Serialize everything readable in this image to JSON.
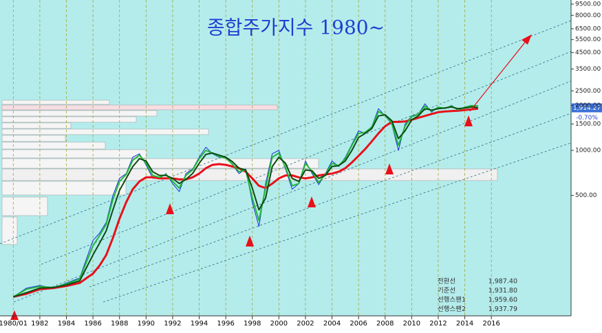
{
  "chart_data": {
    "type": "line",
    "title": "종합주가지수 1980~",
    "log_scale": true,
    "grid": true,
    "xlim": [
      1979,
      2022
    ],
    "ylim": [
      80,
      9500
    ],
    "xticks": [
      {
        "value": 1980,
        "label": "1980/01"
      },
      1982,
      1984,
      1986,
      1988,
      1990,
      1992,
      1994,
      1996,
      1998,
      2000,
      2002,
      2004,
      2006,
      2008,
      2010,
      2012,
      2014,
      2016
    ],
    "yticks": [
      {
        "value": 9500,
        "label": "9500.00"
      },
      {
        "value": 8000,
        "label": "8000.00"
      },
      {
        "value": 6500,
        "label": "6500.00"
      },
      {
        "value": 5500,
        "label": "5500.00"
      },
      {
        "value": 4500,
        "label": "4500.00"
      },
      {
        "value": 3500,
        "label": "3500.00"
      },
      {
        "value": 2500,
        "label": "2500.00"
      },
      {
        "value": 2000,
        "label": "2000.00"
      },
      {
        "value": 1500,
        "label": "1500.00"
      },
      {
        "value": 1000,
        "label": "1000.00"
      },
      {
        "value": 500,
        "label": "500.00"
      }
    ],
    "x": [
      1980,
      1981,
      1982,
      1983,
      1984,
      1985,
      1986,
      1986.5,
      1987,
      1987.5,
      1988,
      1988.5,
      1989,
      1989.5,
      1990,
      1990.5,
      1991,
      1991.5,
      1992,
      1992.5,
      1993,
      1993.5,
      1994,
      1994.5,
      1995,
      1995.5,
      1996,
      1996.5,
      1997,
      1997.5,
      1998,
      1998.5,
      1999,
      1999.5,
      2000,
      2000.5,
      2001,
      2001.5,
      2002,
      2002.5,
      2003,
      2003.5,
      2004,
      2004.5,
      2005,
      2005.5,
      2006,
      2006.5,
      2007,
      2007.5,
      2008,
      2008.5,
      2009,
      2009.5,
      2010,
      2010.5,
      2011,
      2011.5,
      2012,
      2012.5,
      2013,
      2013.5,
      2014,
      2014.5,
      2015
    ],
    "series": [
      {
        "color": "#1a2fd8",
        "values": [
          105,
          120,
          125,
          120,
          130,
          140,
          250,
          280,
          330,
          500,
          650,
          700,
          900,
          950,
          800,
          650,
          650,
          700,
          600,
          530,
          700,
          750,
          900,
          1050,
          950,
          900,
          900,
          800,
          700,
          750,
          450,
          310,
          600,
          950,
          1000,
          750,
          550,
          600,
          850,
          700,
          590,
          700,
          850,
          780,
          900,
          1100,
          1350,
          1300,
          1450,
          1900,
          1700,
          1500,
          1000,
          1500,
          1700,
          1750,
          2050,
          1800,
          1950,
          1900,
          2000,
          1850,
          1950,
          2000,
          1914.27
        ]
      },
      {
        "color": "#e8101a",
        "values": [
          105,
          110,
          118,
          120,
          124,
          130,
          150,
          170,
          200,
          260,
          350,
          450,
          550,
          620,
          660,
          660,
          650,
          650,
          650,
          640,
          640,
          660,
          700,
          760,
          800,
          810,
          800,
          780,
          760,
          720,
          650,
          580,
          560,
          600,
          650,
          680,
          680,
          660,
          650,
          660,
          680,
          690,
          700,
          720,
          760,
          830,
          920,
          1020,
          1150,
          1300,
          1450,
          1550,
          1550,
          1560,
          1600,
          1650,
          1700,
          1750,
          1800,
          1820,
          1830,
          1840,
          1860,
          1880,
          1900
        ]
      },
      {
        "name": "전환선",
        "color": "#22b83a",
        "values": [
          105,
          118,
          123,
          121,
          128,
          138,
          230,
          270,
          320,
          470,
          620,
          690,
          860,
          930,
          820,
          680,
          660,
          690,
          620,
          560,
          680,
          740,
          880,
          1000,
          960,
          910,
          890,
          810,
          720,
          740,
          480,
          340,
          560,
          900,
          960,
          770,
          580,
          600,
          820,
          720,
          610,
          690,
          820,
          790,
          880,
          1080,
          1300,
          1320,
          1430,
          1820,
          1720,
          1520,
          1080,
          1450,
          1680,
          1740,
          1980,
          1830,
          1940,
          1910,
          1980,
          1870,
          1940,
          1990,
          1985
        ]
      },
      {
        "name": "기준선",
        "color": "#0c4a12",
        "values": [
          105,
          112,
          120,
          121,
          126,
          134,
          200,
          240,
          290,
          400,
          540,
          650,
          780,
          880,
          850,
          720,
          680,
          680,
          650,
          600,
          640,
          700,
          820,
          940,
          960,
          930,
          900,
          840,
          760,
          740,
          560,
          400,
          480,
          780,
          900,
          820,
          650,
          620,
          740,
          730,
          650,
          680,
          780,
          790,
          850,
          1000,
          1220,
          1300,
          1400,
          1700,
          1730,
          1580,
          1200,
          1350,
          1600,
          1700,
          1900,
          1860,
          1900,
          1920,
          1950,
          1900,
          1920,
          1950,
          1930
        ]
      }
    ],
    "current_price": {
      "value": 1914.27,
      "label": "1,914.27"
    },
    "change": {
      "value": -0.7,
      "label": "-0.70%"
    },
    "indicators": [
      {
        "name": "전환선",
        "value": {
          "value": 1987.4,
          "label": "1,987.40"
        }
      },
      {
        "name": "기준선",
        "value": {
          "value": 1931.8,
          "label": "1,931.80"
        }
      },
      {
        "name": "선행스팬1",
        "value": {
          "value": 1959.6,
          "label": "1,959.60"
        }
      },
      {
        "name": "선행스팬2",
        "value": {
          "value": 1937.79,
          "label": "1,937.79"
        }
      }
    ]
  }
}
